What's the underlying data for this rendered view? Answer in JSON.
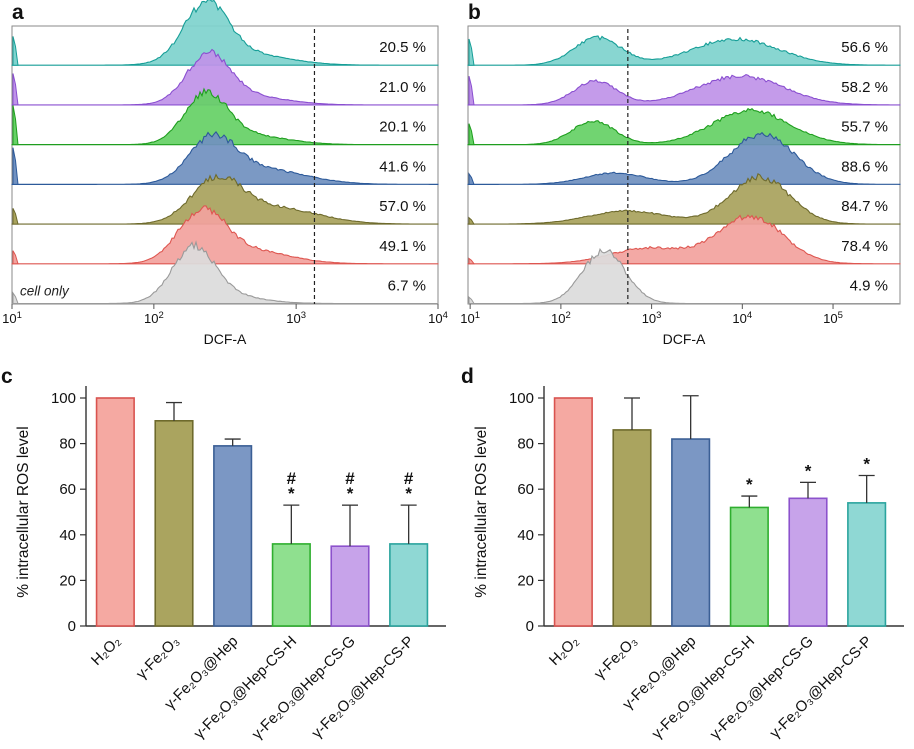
{
  "chart_data": [
    {
      "id": "a",
      "type": "area",
      "panel_label": "a",
      "xlabel": "DCF-A",
      "xscale": "log",
      "x_ticks": [
        {
          "exp": "1",
          "frac": 0.0
        },
        {
          "exp": "2",
          "frac": 0.333
        },
        {
          "exp": "3",
          "frac": 0.667
        },
        {
          "exp": "4",
          "frac": 1.0
        }
      ],
      "gate_x_frac": 0.71,
      "series": [
        {
          "name": "teal",
          "label": "20.5 %",
          "fill": "#7fd3ce",
          "stroke": "#169e97",
          "spike": 0.55,
          "peaks": [
            {
              "c": 0.455,
              "s": 0.052,
              "a": 1.05
            },
            {
              "c": 0.54,
              "s": 0.1,
              "a": 0.22
            }
          ]
        },
        {
          "name": "purple",
          "label": "21.0 %",
          "fill": "#bf93e8",
          "stroke": "#8a4fd0",
          "spike": 0.6,
          "peaks": [
            {
              "c": 0.46,
              "s": 0.05,
              "a": 0.88
            },
            {
              "c": 0.545,
              "s": 0.09,
              "a": 0.18
            }
          ]
        },
        {
          "name": "green",
          "label": "20.1 %",
          "fill": "#66d166",
          "stroke": "#1f9e1f",
          "spike": 0.75,
          "peaks": [
            {
              "c": 0.455,
              "s": 0.05,
              "a": 0.9
            },
            {
              "c": 0.55,
              "s": 0.09,
              "a": 0.18
            }
          ]
        },
        {
          "name": "blue",
          "label": "41.6 %",
          "fill": "#7191c0",
          "stroke": "#2d5a9a",
          "spike": 0.7,
          "peaks": [
            {
              "c": 0.47,
              "s": 0.055,
              "a": 0.82
            },
            {
              "c": 0.59,
              "s": 0.1,
              "a": 0.28
            }
          ]
        },
        {
          "name": "olive",
          "label": "57.0 %",
          "fill": "#a9a35e",
          "stroke": "#6e6a2c",
          "spike": 0.3,
          "peaks": [
            {
              "c": 0.48,
              "s": 0.06,
              "a": 0.8
            },
            {
              "c": 0.62,
              "s": 0.1,
              "a": 0.3
            }
          ]
        },
        {
          "name": "red",
          "label": "49.1 %",
          "fill": "#f2a39e",
          "stroke": "#de5650",
          "spike": 0.25,
          "peaks": [
            {
              "c": 0.445,
              "s": 0.055,
              "a": 0.95
            },
            {
              "c": 0.56,
              "s": 0.09,
              "a": 0.25
            }
          ]
        },
        {
          "name": "gray",
          "label": "6.7 %",
          "fill": "#dcdcdc",
          "stroke": "#9a9a9a",
          "spike": 0.2,
          "note": "cell only",
          "peaks": [
            {
              "c": 0.425,
              "s": 0.05,
              "a": 1.0
            },
            {
              "c": 0.5,
              "s": 0.08,
              "a": 0.15
            }
          ]
        }
      ]
    },
    {
      "id": "b",
      "type": "area",
      "panel_label": "b",
      "xlabel": "DCF-A",
      "xscale": "log",
      "x_ticks": [
        {
          "exp": "1",
          "frac": 0.005
        },
        {
          "exp": "2",
          "frac": 0.215
        },
        {
          "exp": "3",
          "frac": 0.425
        },
        {
          "exp": "4",
          "frac": 0.635
        },
        {
          "exp": "5",
          "frac": 0.845
        }
      ],
      "gate_x_frac": 0.37,
      "series": [
        {
          "name": "teal",
          "label": "56.6 %",
          "fill": "#7fd3ce",
          "stroke": "#169e97",
          "spike": 0.5,
          "peaks": [
            {
              "c": 0.3,
              "s": 0.055,
              "a": 0.52
            },
            {
              "c": 0.62,
              "s": 0.1,
              "a": 0.5
            }
          ]
        },
        {
          "name": "purple",
          "label": "58.2 %",
          "fill": "#bf93e8",
          "stroke": "#8a4fd0",
          "spike": 0.55,
          "peaks": [
            {
              "c": 0.295,
              "s": 0.05,
              "a": 0.45
            },
            {
              "c": 0.63,
              "s": 0.1,
              "a": 0.55
            }
          ]
        },
        {
          "name": "green",
          "label": "55.7 %",
          "fill": "#66d166",
          "stroke": "#1f9e1f",
          "spike": 0.4,
          "peaks": [
            {
              "c": 0.29,
              "s": 0.05,
              "a": 0.45
            },
            {
              "c": 0.655,
              "s": 0.09,
              "a": 0.65
            }
          ]
        },
        {
          "name": "blue",
          "label": "88.6 %",
          "fill": "#7191c0",
          "stroke": "#2d5a9a",
          "spike": 0.2,
          "peaks": [
            {
              "c": 0.34,
              "s": 0.07,
              "a": 0.22
            },
            {
              "c": 0.68,
              "s": 0.075,
              "a": 0.95
            }
          ]
        },
        {
          "name": "olive",
          "label": "84.7 %",
          "fill": "#a9a35e",
          "stroke": "#6e6a2c",
          "spike": 0.12,
          "peaks": [
            {
              "c": 0.37,
              "s": 0.09,
              "a": 0.25
            },
            {
              "c": 0.675,
              "s": 0.07,
              "a": 0.9
            }
          ]
        },
        {
          "name": "red",
          "label": "78.4 %",
          "fill": "#f2a39e",
          "stroke": "#de5650",
          "spike": 0.1,
          "peaks": [
            {
              "c": 0.42,
              "s": 0.09,
              "a": 0.3
            },
            {
              "c": 0.655,
              "s": 0.075,
              "a": 0.9
            }
          ]
        },
        {
          "name": "gray",
          "label": "4.9 %",
          "fill": "#dcdcdc",
          "stroke": "#9a9a9a",
          "spike": 0.12,
          "peaks": [
            {
              "c": 0.315,
              "s": 0.05,
              "a": 1.0
            }
          ]
        }
      ]
    },
    {
      "id": "c",
      "type": "bar",
      "panel_label": "c",
      "ylabel": "% intracellular ROS level",
      "ylim": [
        0,
        100
      ],
      "yticks": [
        0,
        20,
        40,
        60,
        80,
        100
      ],
      "categories": [
        "H₂O₂",
        "γ-Fe₂O₃",
        "γ-Fe₂O₃@Hep",
        "γ-Fe₂O₃@Hep-CS-H",
        "γ-Fe₂O₃@Hep-CS-G",
        "γ-Fe₂O₃@Hep-CS-P"
      ],
      "values": [
        100,
        90,
        79,
        36,
        35,
        36
      ],
      "errors": [
        0,
        8,
        3,
        17,
        18,
        17
      ],
      "annotations": [
        [],
        [],
        [],
        [
          "#",
          "*"
        ],
        [
          "#",
          "*"
        ],
        [
          "#",
          "*"
        ]
      ],
      "colors": {
        "fill": [
          "#f5a9a2",
          "#aaa45f",
          "#7b97c4",
          "#8fe08f",
          "#c7a3ea",
          "#8fd8d4"
        ],
        "stroke": [
          "#d9534f",
          "#6e6a2c",
          "#3b5f95",
          "#2fae2f",
          "#8c52cc",
          "#2aa49e"
        ]
      }
    },
    {
      "id": "d",
      "type": "bar",
      "panel_label": "d",
      "ylabel": "% intracellular ROS level",
      "ylim": [
        0,
        100
      ],
      "yticks": [
        0,
        20,
        40,
        60,
        80,
        100
      ],
      "categories": [
        "H₂O₂",
        "γ-Fe₂O₃",
        "γ-Fe₂O₃@Hep",
        "γ-Fe₂O₃@Hep-CS-H",
        "γ-Fe₂O₃@Hep-CS-G",
        "γ-Fe₂O₃@Hep-CS-P"
      ],
      "values": [
        100,
        86,
        82,
        52,
        56,
        54
      ],
      "errors": [
        0,
        14,
        19,
        5,
        7,
        12
      ],
      "annotations": [
        [],
        [],
        [],
        [
          "*"
        ],
        [
          "*"
        ],
        [
          "*"
        ]
      ],
      "colors": {
        "fill": [
          "#f5a9a2",
          "#aaa45f",
          "#7b97c4",
          "#8fe08f",
          "#c7a3ea",
          "#8fd8d4"
        ],
        "stroke": [
          "#d9534f",
          "#6e6a2c",
          "#3b5f95",
          "#2fae2f",
          "#8c52cc",
          "#2aa49e"
        ]
      }
    }
  ]
}
